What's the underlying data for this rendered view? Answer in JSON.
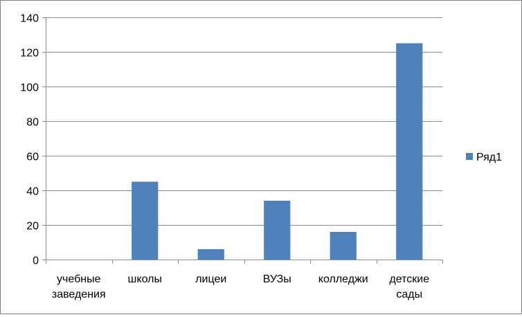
{
  "chart_data": {
    "type": "bar",
    "categories": [
      [
        "учебные",
        "заведения"
      ],
      [
        "школы"
      ],
      [
        "лицеи"
      ],
      [
        "ВУЗы"
      ],
      [
        "колледжи"
      ],
      [
        "детские",
        "сады"
      ]
    ],
    "series": [
      {
        "name": "Ряд1",
        "values": [
          0,
          45,
          6,
          34,
          16,
          125
        ],
        "color": "#4f81bd"
      }
    ],
    "title": "",
    "xlabel": "",
    "ylabel": "",
    "ylim": [
      0,
      140
    ],
    "yticks": [
      0,
      20,
      40,
      60,
      80,
      100,
      120,
      140
    ],
    "grid": true,
    "gridColor": "#8c8c8c",
    "axisColor": "#8c8c8c",
    "legend": "right"
  }
}
